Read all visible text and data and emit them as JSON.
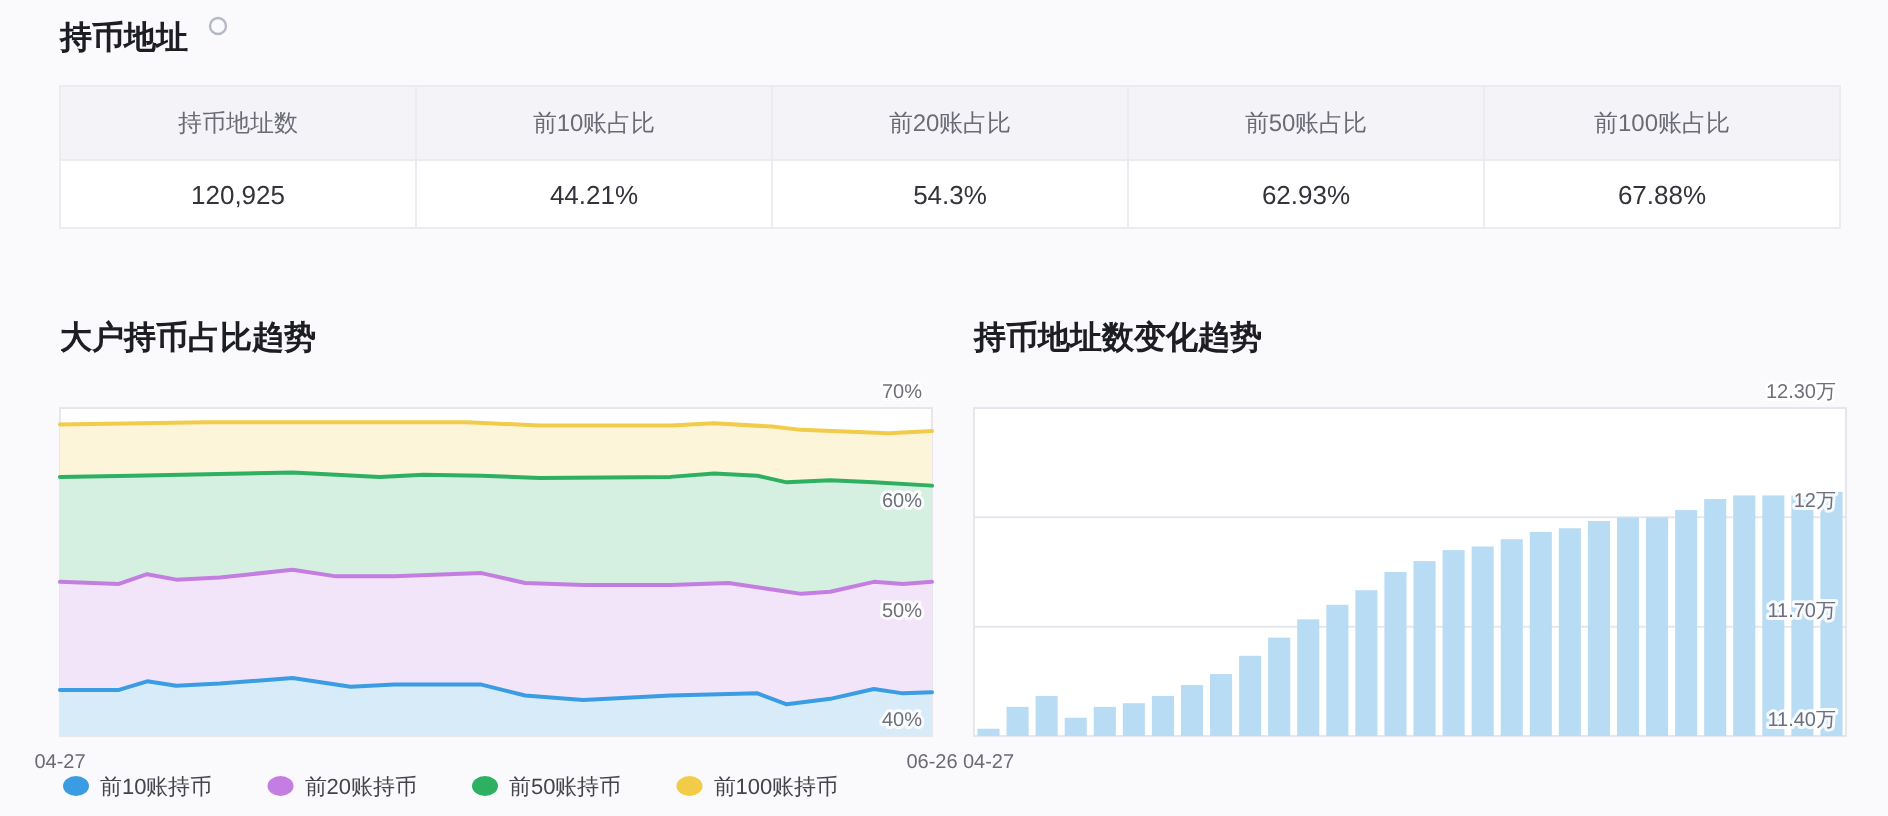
{
  "chart_data": [
    {
      "type": "other",
      "title": "持币地址",
      "categories": [
        "持币地址数",
        "前10账占比",
        "前20账占比",
        "前50账占比",
        "前100账占比"
      ],
      "value_labels": [
        "120,925",
        "44.21%",
        "54.3%",
        "62.93%",
        "67.88%"
      ]
    },
    {
      "type": "area",
      "title": "大户持币占比趋势",
      "xlim": [
        "--04-27",
        "--06-26"
      ],
      "xticks": [
        {
          "value": "--04-27",
          "label": "04-27"
        },
        {
          "value": "--06-26",
          "label": "06-26"
        }
      ],
      "ylim": [
        40,
        70
      ],
      "yticks": [
        {
          "value": 40,
          "label": "40%"
        },
        {
          "value": 50,
          "label": "50%"
        },
        {
          "value": 60,
          "label": "60%"
        },
        {
          "value": 70,
          "label": "70%"
        }
      ],
      "legend": "bottom",
      "series": [
        {
          "name": "前10账持币",
          "color": "#3a9de3",
          "x": [
            "--04-27",
            "--05-01",
            "--05-03",
            "--05-05",
            "--05-08",
            "--05-13",
            "--05-17",
            "--05-20",
            "--05-26",
            "--05-29",
            "--06-02",
            "--06-08",
            "--06-14",
            "--06-16",
            "--06-19",
            "--06-22",
            "--06-24",
            "--06-26"
          ],
          "values": [
            44.2,
            44.2,
            45.0,
            44.6,
            44.8,
            45.3,
            44.5,
            44.7,
            44.7,
            43.7,
            43.3,
            43.7,
            43.9,
            42.9,
            43.4,
            44.3,
            43.9,
            44.0
          ]
        },
        {
          "name": "前20账持币",
          "color": "#c47ee2",
          "x": [
            "--04-27",
            "--05-01",
            "--05-03",
            "--05-05",
            "--05-08",
            "--05-13",
            "--05-16",
            "--05-20",
            "--05-26",
            "--05-29",
            "--06-02",
            "--06-08",
            "--06-12",
            "--06-15",
            "--06-17",
            "--06-19",
            "--06-22",
            "--06-24",
            "--06-26"
          ],
          "values": [
            54.1,
            53.9,
            54.8,
            54.3,
            54.5,
            55.2,
            54.6,
            54.6,
            54.9,
            54.0,
            53.8,
            53.8,
            54.0,
            53.4,
            53.0,
            53.2,
            54.1,
            53.9,
            54.1
          ]
        },
        {
          "name": "前50账持币",
          "color": "#2db062",
          "x": [
            "--04-27",
            "--05-02",
            "--05-13",
            "--05-19",
            "--05-22",
            "--05-26",
            "--05-30",
            "--06-08",
            "--06-11",
            "--06-14",
            "--06-16",
            "--06-19",
            "--06-22",
            "--06-26"
          ],
          "values": [
            63.7,
            63.8,
            64.1,
            63.7,
            63.9,
            63.8,
            63.6,
            63.7,
            64.0,
            63.8,
            63.2,
            63.4,
            63.2,
            62.9
          ]
        },
        {
          "name": "前100账持币",
          "color": "#f2cb48",
          "x": [
            "--04-27",
            "--05-07",
            "--05-25",
            "--05-30",
            "--06-08",
            "--06-11",
            "--06-15",
            "--06-17",
            "--06-23",
            "--06-26"
          ],
          "values": [
            68.5,
            68.7,
            68.7,
            68.4,
            68.4,
            68.6,
            68.3,
            68.0,
            67.7,
            67.9
          ]
        }
      ]
    },
    {
      "type": "bar",
      "title": "持币地址数变化趋势",
      "categories": [
        "04-27",
        null,
        null,
        null,
        null,
        null,
        null,
        null,
        null,
        null,
        null,
        null,
        null,
        null,
        null,
        null,
        null,
        null,
        null,
        null,
        null,
        null,
        null,
        null,
        null,
        null,
        null,
        null,
        null,
        null
      ],
      "values": [
        11.42,
        11.48,
        11.51,
        11.45,
        11.48,
        11.49,
        11.51,
        11.54,
        11.57,
        11.62,
        11.67,
        11.72,
        11.76,
        11.8,
        11.85,
        11.88,
        11.91,
        11.92,
        11.94,
        11.96,
        11.97,
        11.99,
        12.0,
        12.0,
        12.02,
        12.05,
        12.06,
        12.06,
        12.06,
        12.07
      ],
      "color": "#b9dcf5",
      "ylim": [
        11.4,
        12.3
      ],
      "yticks": [
        {
          "value": 11.4,
          "label": "11.40万"
        },
        {
          "value": 11.7,
          "label": "11.70万"
        },
        {
          "value": 12,
          "label": "12万"
        },
        {
          "value": 12.3,
          "label": "12.30万"
        }
      ],
      "grid": "y"
    }
  ]
}
